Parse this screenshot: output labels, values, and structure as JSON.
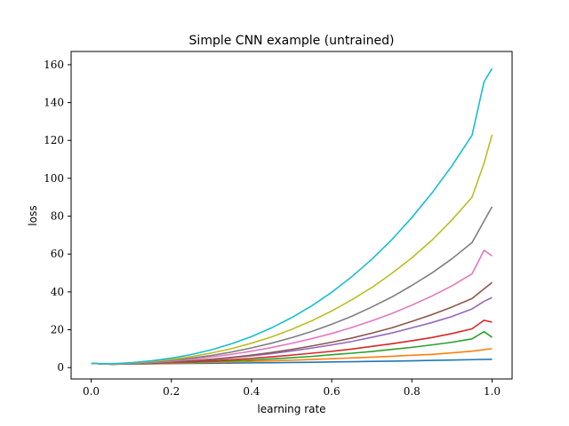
{
  "chart_data": {
    "type": "line",
    "title": "Simple CNN example (untrained)",
    "xlabel": "learning rate",
    "ylabel": "loss",
    "xlim": [
      -0.05,
      1.05
    ],
    "ylim": [
      -6,
      167
    ],
    "xticks": [
      0.0,
      0.2,
      0.4,
      0.6,
      0.8,
      1.0
    ],
    "xtick_labels": [
      "0.0",
      "0.2",
      "0.4",
      "0.6",
      "0.8",
      "1.0"
    ],
    "yticks": [
      0,
      20,
      40,
      60,
      80,
      100,
      120,
      140,
      160
    ],
    "ytick_labels": [
      "0",
      "20",
      "40",
      "60",
      "80",
      "100",
      "120",
      "140",
      "160"
    ],
    "grid": false,
    "legend": "none",
    "series": [
      {
        "color": "#1f77b4",
        "x": [
          0.0,
          0.05,
          0.1,
          0.15,
          0.2,
          0.25,
          0.3,
          0.35,
          0.4,
          0.45,
          0.5,
          0.55,
          0.6,
          0.65,
          0.7,
          0.75,
          0.8,
          0.85,
          0.9,
          0.95,
          1.0
        ],
        "y": [
          2.2,
          1.8,
          1.9,
          2.0,
          2.1,
          2.2,
          2.3,
          2.4,
          2.5,
          2.6,
          2.7,
          2.8,
          3.0,
          3.1,
          3.3,
          3.4,
          3.6,
          3.8,
          4.0,
          4.2,
          4.4
        ]
      },
      {
        "color": "#ff7f0e",
        "x": [
          0.0,
          0.05,
          0.1,
          0.15,
          0.2,
          0.25,
          0.3,
          0.35,
          0.4,
          0.45,
          0.5,
          0.55,
          0.6,
          0.65,
          0.7,
          0.75,
          0.8,
          0.85,
          0.9,
          0.95,
          1.0
        ],
        "y": [
          2.2,
          1.8,
          1.9,
          2.1,
          2.2,
          2.5,
          2.8,
          3.0,
          3.3,
          3.6,
          3.9,
          4.3,
          4.7,
          5.1,
          5.5,
          6.0,
          6.5,
          7.0,
          7.8,
          8.7,
          10.0
        ]
      },
      {
        "color": "#2ca02c",
        "x": [
          0.0,
          0.05,
          0.1,
          0.15,
          0.2,
          0.25,
          0.3,
          0.35,
          0.4,
          0.45,
          0.5,
          0.55,
          0.6,
          0.65,
          0.7,
          0.75,
          0.8,
          0.85,
          0.9,
          0.95,
          0.98,
          1.0
        ],
        "y": [
          2.2,
          1.8,
          2.0,
          2.2,
          2.5,
          2.8,
          3.2,
          3.6,
          4.0,
          4.6,
          5.2,
          5.9,
          6.8,
          7.6,
          8.5,
          9.6,
          10.7,
          12.0,
          13.4,
          15.2,
          19.0,
          16.0
        ]
      },
      {
        "color": "#d62728",
        "x": [
          0.0,
          0.05,
          0.1,
          0.15,
          0.2,
          0.25,
          0.3,
          0.35,
          0.4,
          0.45,
          0.5,
          0.55,
          0.6,
          0.65,
          0.7,
          0.75,
          0.8,
          0.85,
          0.9,
          0.95,
          0.98,
          1.0
        ],
        "y": [
          2.2,
          1.8,
          2.0,
          2.3,
          2.7,
          3.1,
          3.6,
          4.2,
          4.9,
          5.7,
          6.6,
          7.6,
          8.6,
          9.8,
          11.2,
          12.6,
          14.2,
          15.9,
          18.0,
          20.5,
          25.0,
          24.0
        ]
      },
      {
        "color": "#9467bd",
        "x": [
          0.0,
          0.05,
          0.1,
          0.15,
          0.2,
          0.25,
          0.3,
          0.35,
          0.4,
          0.45,
          0.5,
          0.55,
          0.6,
          0.65,
          0.7,
          0.75,
          0.8,
          0.85,
          0.9,
          0.95,
          0.98,
          1.0
        ],
        "y": [
          2.2,
          1.8,
          2.0,
          2.4,
          2.9,
          3.5,
          4.3,
          5.2,
          6.2,
          7.4,
          8.8,
          10.3,
          12.0,
          13.8,
          16.0,
          18.3,
          21.0,
          23.8,
          27.0,
          31.0,
          35.0,
          37.0
        ]
      },
      {
        "color": "#8c564b",
        "x": [
          0.0,
          0.05,
          0.1,
          0.15,
          0.2,
          0.25,
          0.3,
          0.35,
          0.4,
          0.45,
          0.5,
          0.55,
          0.6,
          0.65,
          0.7,
          0.75,
          0.8,
          0.85,
          0.9,
          0.95,
          1.0
        ],
        "y": [
          2.2,
          1.8,
          2.1,
          2.5,
          3.0,
          3.6,
          4.4,
          5.4,
          6.6,
          8.0,
          9.6,
          11.4,
          13.4,
          15.6,
          18.2,
          21.0,
          24.4,
          28.0,
          32.0,
          36.5,
          45.0
        ]
      },
      {
        "color": "#e377c2",
        "x": [
          0.0,
          0.05,
          0.1,
          0.15,
          0.2,
          0.25,
          0.3,
          0.35,
          0.4,
          0.45,
          0.5,
          0.55,
          0.6,
          0.65,
          0.7,
          0.75,
          0.8,
          0.85,
          0.9,
          0.95,
          0.98,
          1.0
        ],
        "y": [
          2.2,
          1.8,
          2.2,
          2.7,
          3.4,
          4.4,
          5.6,
          7.0,
          8.7,
          10.6,
          12.8,
          15.3,
          18.0,
          21.2,
          24.7,
          28.6,
          33.0,
          37.8,
          43.2,
          49.5,
          62.0,
          59.0
        ]
      },
      {
        "color": "#7f7f7f",
        "x": [
          0.0,
          0.05,
          0.1,
          0.15,
          0.2,
          0.25,
          0.3,
          0.35,
          0.4,
          0.45,
          0.5,
          0.55,
          0.6,
          0.65,
          0.7,
          0.75,
          0.8,
          0.85,
          0.9,
          0.95,
          1.0
        ],
        "y": [
          2.2,
          1.9,
          2.3,
          2.9,
          3.8,
          5.0,
          6.4,
          8.2,
          10.4,
          12.9,
          15.8,
          19.1,
          22.9,
          27.1,
          32.0,
          37.3,
          43.4,
          50.0,
          57.5,
          66.0,
          85.0
        ]
      },
      {
        "color": "#bcbd22",
        "x": [
          0.0,
          0.05,
          0.1,
          0.15,
          0.2,
          0.25,
          0.3,
          0.35,
          0.4,
          0.45,
          0.5,
          0.55,
          0.6,
          0.65,
          0.7,
          0.75,
          0.8,
          0.85,
          0.9,
          0.95,
          0.98,
          1.0
        ],
        "y": [
          2.2,
          1.9,
          2.4,
          3.2,
          4.3,
          5.8,
          7.7,
          10.0,
          12.9,
          16.2,
          20.2,
          24.7,
          29.9,
          35.8,
          42.3,
          49.8,
          58.0,
          67.3,
          78.0,
          90.0,
          108.0,
          123.0
        ]
      },
      {
        "color": "#17becf",
        "x": [
          0.0,
          0.05,
          0.1,
          0.15,
          0.2,
          0.25,
          0.3,
          0.35,
          0.4,
          0.45,
          0.5,
          0.55,
          0.6,
          0.65,
          0.7,
          0.75,
          0.8,
          0.85,
          0.9,
          0.95,
          0.98,
          1.0
        ],
        "y": [
          2.2,
          2.0,
          2.6,
          3.6,
          5.0,
          6.9,
          9.4,
          12.6,
          16.4,
          21.0,
          26.4,
          32.6,
          39.8,
          48.0,
          57.2,
          67.6,
          79.3,
          92.2,
          106.6,
          122.7,
          151.0,
          158.0
        ]
      }
    ]
  }
}
